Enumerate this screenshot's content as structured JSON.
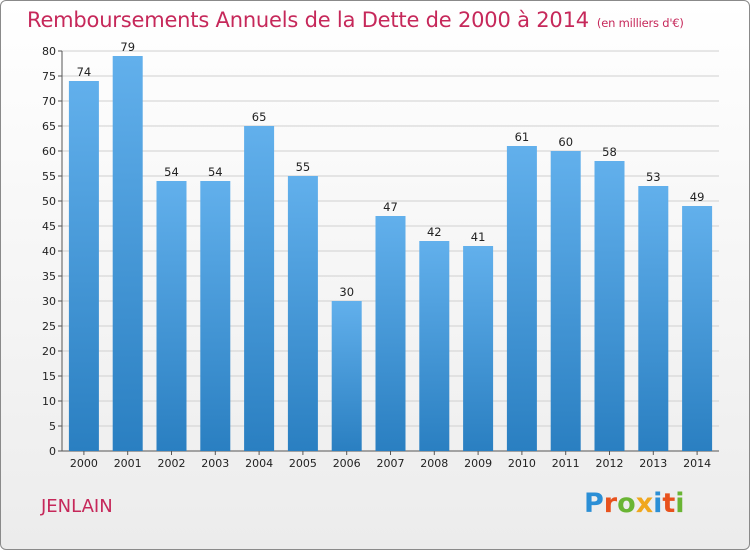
{
  "header": {
    "title": "Remboursements Annuels de la Dette de 2000 à 2014",
    "unit": "(en milliers d'€)"
  },
  "footer": {
    "commune": "JENLAIN",
    "logo_text": "Proxiti",
    "logo_letters": [
      {
        "ch": "P",
        "color": "#2b8fd6"
      },
      {
        "ch": "r",
        "color": "#e8521d"
      },
      {
        "ch": "o",
        "color": "#6ab534"
      },
      {
        "ch": "x",
        "color": "#f0a71e"
      },
      {
        "ch": "i",
        "color": "#2b8fd6"
      },
      {
        "ch": "t",
        "color": "#e8521d"
      },
      {
        "ch": "i",
        "color": "#6ab534"
      }
    ]
  },
  "colors": {
    "bar_top": "#62b0ec",
    "bar_bottom": "#2a7fc1",
    "title": "#c6285a",
    "grid": "#d0d0d0"
  },
  "chart_data": {
    "type": "bar",
    "title": "Remboursements Annuels de la Dette de 2000 à 2014",
    "categories": [
      "2000",
      "2001",
      "2002",
      "2003",
      "2004",
      "2005",
      "2006",
      "2007",
      "2008",
      "2009",
      "2010",
      "2011",
      "2012",
      "2013",
      "2014"
    ],
    "values": [
      74,
      79,
      54,
      54,
      65,
      55,
      30,
      47,
      42,
      41,
      61,
      60,
      58,
      53,
      49
    ],
    "ylim": [
      0,
      80
    ],
    "ytick_step": 5,
    "grid": true
  }
}
